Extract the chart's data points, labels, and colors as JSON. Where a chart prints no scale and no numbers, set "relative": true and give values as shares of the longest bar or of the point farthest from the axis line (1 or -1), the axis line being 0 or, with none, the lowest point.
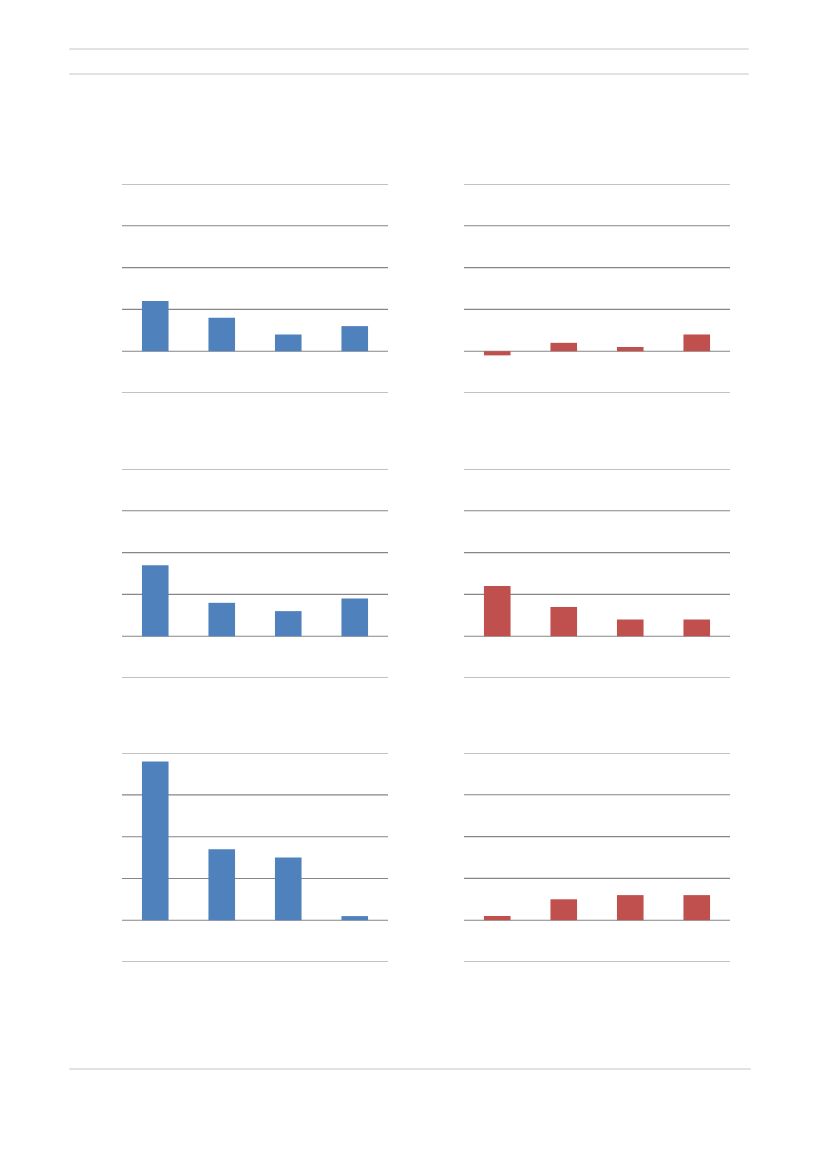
{
  "chart_data": [
    {
      "type": "bar",
      "relative": true,
      "categories": [
        null,
        null,
        null,
        null
      ],
      "grid": false,
      "legend": false,
      "series": [
        {
          "color": "#4f81bd",
          "values": [
            1,
            0.667,
            0.333,
            0.5
          ]
        }
      ],
      "ref_lines": [
        {
          "axis": "y",
          "value": -0.833,
          "color": "#868686"
        },
        {
          "axis": "y",
          "value": 0,
          "color": "#868686"
        },
        {
          "axis": "y",
          "value": 0.833,
          "color": "#868686"
        },
        {
          "axis": "y",
          "value": 1.667,
          "color": "#868686"
        },
        {
          "axis": "y",
          "value": 2.5,
          "color": "#868686"
        },
        {
          "axis": "y",
          "value": 3.333,
          "color": "#868686"
        }
      ]
    },
    {
      "type": "bar",
      "relative": true,
      "categories": [
        null,
        null,
        null,
        null
      ],
      "grid": false,
      "legend": false,
      "series": [
        {
          "color": "#c0504d",
          "values": [
            -0.25,
            0.5,
            0.25,
            1
          ]
        }
      ],
      "ref_lines": [
        {
          "axis": "y",
          "value": -2.5,
          "color": "#868686"
        },
        {
          "axis": "y",
          "value": 0,
          "color": "#868686"
        },
        {
          "axis": "y",
          "value": 2.5,
          "color": "#868686"
        },
        {
          "axis": "y",
          "value": 5,
          "color": "#868686"
        },
        {
          "axis": "y",
          "value": 7.5,
          "color": "#868686"
        },
        {
          "axis": "y",
          "value": 10,
          "color": "#868686"
        }
      ]
    },
    {
      "type": "bar",
      "relative": true,
      "categories": [
        null,
        null,
        null,
        null
      ],
      "grid": false,
      "legend": false,
      "series": [
        {
          "color": "#4f81bd",
          "values": [
            1,
            0.47,
            0.353,
            0.529
          ]
        }
      ],
      "ref_lines": [
        {
          "axis": "y",
          "value": -0.588,
          "color": "#868686"
        },
        {
          "axis": "y",
          "value": 0,
          "color": "#868686"
        },
        {
          "axis": "y",
          "value": 0.588,
          "color": "#868686"
        },
        {
          "axis": "y",
          "value": 1.176,
          "color": "#868686"
        },
        {
          "axis": "y",
          "value": 1.765,
          "color": "#868686"
        },
        {
          "axis": "y",
          "value": 2.353,
          "color": "#868686"
        }
      ]
    },
    {
      "type": "bar",
      "relative": true,
      "categories": [
        null,
        null,
        null,
        null
      ],
      "grid": false,
      "legend": false,
      "series": [
        {
          "color": "#c0504d",
          "values": [
            1,
            0.583,
            0.333,
            0.333
          ]
        }
      ],
      "ref_lines": [
        {
          "axis": "y",
          "value": -0.833,
          "color": "#868686"
        },
        {
          "axis": "y",
          "value": 0,
          "color": "#868686"
        },
        {
          "axis": "y",
          "value": 0.833,
          "color": "#868686"
        },
        {
          "axis": "y",
          "value": 1.667,
          "color": "#868686"
        },
        {
          "axis": "y",
          "value": 2.5,
          "color": "#868686"
        },
        {
          "axis": "y",
          "value": 3.333,
          "color": "#868686"
        }
      ]
    },
    {
      "type": "bar",
      "relative": true,
      "categories": [
        null,
        null,
        null,
        null
      ],
      "grid": false,
      "legend": false,
      "series": [
        {
          "color": "#4f81bd",
          "values": [
            1,
            0.447,
            0.395,
            0.026
          ]
        }
      ],
      "ref_lines": [
        {
          "axis": "y",
          "value": -0.263,
          "color": "#868686"
        },
        {
          "axis": "y",
          "value": 0,
          "color": "#868686"
        },
        {
          "axis": "y",
          "value": 0.263,
          "color": "#868686"
        },
        {
          "axis": "y",
          "value": 0.526,
          "color": "#868686"
        },
        {
          "axis": "y",
          "value": 0.789,
          "color": "#868686"
        },
        {
          "axis": "y",
          "value": 1.053,
          "color": "#868686"
        }
      ]
    },
    {
      "type": "bar",
      "relative": true,
      "categories": [
        null,
        null,
        null,
        null
      ],
      "grid": false,
      "legend": false,
      "series": [
        {
          "color": "#c0504d",
          "values": [
            0.167,
            0.833,
            1,
            1
          ]
        }
      ],
      "ref_lines": [
        {
          "axis": "y",
          "value": -1.667,
          "color": "#868686"
        },
        {
          "axis": "y",
          "value": 0,
          "color": "#868686"
        },
        {
          "axis": "y",
          "value": 1.667,
          "color": "#868686"
        },
        {
          "axis": "y",
          "value": 3.333,
          "color": "#868686"
        },
        {
          "axis": "y",
          "value": 5,
          "color": "#868686"
        },
        {
          "axis": "y",
          "value": 6.667,
          "color": "#868686"
        }
      ]
    }
  ]
}
